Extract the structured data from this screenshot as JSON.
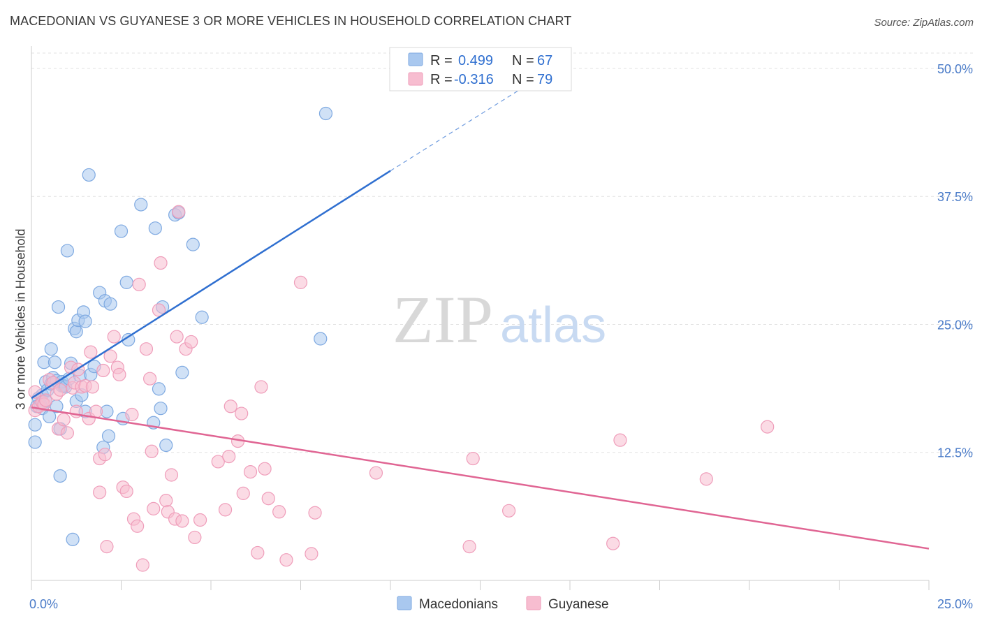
{
  "header": {
    "title": "MACEDONIAN VS GUYANESE 3 OR MORE VEHICLES IN HOUSEHOLD CORRELATION CHART",
    "source": "Source: ZipAtlas.com"
  },
  "watermark": {
    "zip": "ZIP",
    "atlas": "atlas"
  },
  "chart_data": {
    "type": "scatter",
    "title": "MACEDONIAN VS GUYANESE 3 OR MORE VEHICLES IN HOUSEHOLD CORRELATION CHART",
    "xlabel": "",
    "ylabel": "3 or more Vehicles in Household",
    "xlim": [
      0,
      25
    ],
    "ylim": [
      0,
      51.5
    ],
    "x_tick_labels": [
      {
        "value": 0,
        "label": "0.0%"
      },
      {
        "value": 25,
        "label": "25.0%"
      }
    ],
    "y_tick_labels": [
      {
        "value": 12.5,
        "label": "12.5%"
      },
      {
        "value": 25,
        "label": "25.0%"
      },
      {
        "value": 37.5,
        "label": "37.5%"
      },
      {
        "value": 50,
        "label": "50.0%"
      }
    ],
    "legend_position": "top-center",
    "series": [
      {
        "name": "Macedonians",
        "color": "#a9c8ef",
        "stroke": "#7ea9e1",
        "line_color": "#2f6fd0",
        "R": "0.499",
        "N": "67",
        "trend": {
          "x0": 0,
          "y0": 17.8,
          "x1": 10,
          "y1": 40.0,
          "dash_to_x": 14,
          "dash_to_y": 48.8
        },
        "points": [
          [
            0.1,
            13.5
          ],
          [
            0.1,
            15.2
          ],
          [
            0.15,
            17.0
          ],
          [
            0.2,
            17.8
          ],
          [
            0.25,
            17.2
          ],
          [
            0.3,
            18.1
          ],
          [
            0.3,
            16.8
          ],
          [
            0.35,
            21.3
          ],
          [
            0.4,
            19.4
          ],
          [
            0.4,
            17.5
          ],
          [
            0.45,
            18.6
          ],
          [
            0.5,
            16.0
          ],
          [
            0.55,
            19.2
          ],
          [
            0.55,
            22.6
          ],
          [
            0.6,
            19.8
          ],
          [
            0.65,
            21.3
          ],
          [
            0.7,
            17.0
          ],
          [
            0.7,
            19.5
          ],
          [
            0.75,
            26.7
          ],
          [
            0.8,
            14.8
          ],
          [
            0.8,
            10.2
          ],
          [
            0.85,
            19.0
          ],
          [
            0.85,
            19.4
          ],
          [
            0.9,
            19.0
          ],
          [
            0.95,
            18.9
          ],
          [
            1.0,
            32.2
          ],
          [
            1.05,
            19.7
          ],
          [
            1.1,
            21.2
          ],
          [
            1.15,
            4.0
          ],
          [
            1.2,
            24.6
          ],
          [
            1.25,
            17.5
          ],
          [
            1.25,
            24.3
          ],
          [
            1.3,
            25.4
          ],
          [
            1.35,
            20.0
          ],
          [
            1.4,
            18.1
          ],
          [
            1.45,
            26.2
          ],
          [
            1.5,
            16.5
          ],
          [
            1.5,
            25.3
          ],
          [
            1.6,
            39.6
          ],
          [
            1.65,
            20.1
          ],
          [
            1.75,
            20.9
          ],
          [
            1.9,
            28.1
          ],
          [
            2.0,
            13.0
          ],
          [
            2.05,
            27.3
          ],
          [
            2.1,
            16.5
          ],
          [
            2.15,
            14.1
          ],
          [
            2.2,
            27.0
          ],
          [
            2.5,
            34.1
          ],
          [
            2.55,
            15.8
          ],
          [
            2.65,
            29.1
          ],
          [
            2.7,
            23.5
          ],
          [
            3.05,
            36.7
          ],
          [
            3.4,
            15.4
          ],
          [
            3.45,
            34.4
          ],
          [
            3.55,
            18.7
          ],
          [
            3.6,
            16.8
          ],
          [
            3.65,
            26.7
          ],
          [
            3.75,
            13.2
          ],
          [
            4.0,
            35.7
          ],
          [
            4.1,
            35.9
          ],
          [
            4.2,
            20.3
          ],
          [
            4.5,
            32.8
          ],
          [
            4.75,
            25.7
          ],
          [
            8.05,
            23.6
          ],
          [
            8.2,
            45.6
          ]
        ]
      },
      {
        "name": "Guyanese",
        "color": "#f7bdd0",
        "stroke": "#ef9dba",
        "line_color": "#e06593",
        "R": "-0.316",
        "N": "79",
        "trend": {
          "x0": 0,
          "y0": 16.9,
          "x1": 25,
          "y1": 3.1
        },
        "points": [
          [
            0.1,
            18.4
          ],
          [
            0.1,
            16.6
          ],
          [
            0.2,
            17.0
          ],
          [
            0.3,
            17.4
          ],
          [
            0.35,
            17.2
          ],
          [
            0.4,
            17.6
          ],
          [
            0.5,
            19.6
          ],
          [
            0.6,
            19.3
          ],
          [
            0.7,
            18.2
          ],
          [
            0.75,
            14.8
          ],
          [
            0.8,
            18.6
          ],
          [
            0.9,
            15.7
          ],
          [
            1.0,
            14.4
          ],
          [
            1.1,
            20.8
          ],
          [
            1.15,
            18.8
          ],
          [
            1.2,
            19.3
          ],
          [
            1.25,
            16.5
          ],
          [
            1.3,
            20.6
          ],
          [
            1.4,
            18.9
          ],
          [
            1.5,
            19.0
          ],
          [
            1.6,
            15.8
          ],
          [
            1.65,
            22.3
          ],
          [
            1.7,
            18.9
          ],
          [
            1.8,
            16.5
          ],
          [
            1.9,
            11.9
          ],
          [
            1.9,
            8.6
          ],
          [
            2.0,
            20.5
          ],
          [
            2.05,
            12.3
          ],
          [
            2.1,
            3.3
          ],
          [
            2.2,
            21.9
          ],
          [
            2.3,
            23.8
          ],
          [
            2.4,
            20.8
          ],
          [
            2.45,
            20.1
          ],
          [
            2.55,
            9.1
          ],
          [
            2.65,
            8.7
          ],
          [
            2.8,
            16.2
          ],
          [
            2.85,
            6.0
          ],
          [
            2.95,
            5.3
          ],
          [
            3.0,
            28.9
          ],
          [
            3.1,
            1.5
          ],
          [
            3.2,
            22.6
          ],
          [
            3.3,
            19.7
          ],
          [
            3.35,
            12.6
          ],
          [
            3.4,
            7.0
          ],
          [
            3.55,
            26.4
          ],
          [
            3.6,
            31.0
          ],
          [
            3.75,
            7.8
          ],
          [
            3.8,
            6.7
          ],
          [
            3.9,
            10.3
          ],
          [
            4.0,
            6.0
          ],
          [
            4.05,
            23.8
          ],
          [
            4.1,
            36.0
          ],
          [
            4.2,
            5.8
          ],
          [
            4.3,
            22.6
          ],
          [
            4.45,
            23.3
          ],
          [
            4.55,
            4.2
          ],
          [
            4.7,
            5.9
          ],
          [
            5.2,
            11.6
          ],
          [
            5.4,
            6.9
          ],
          [
            5.5,
            12.1
          ],
          [
            5.55,
            17.0
          ],
          [
            5.75,
            13.6
          ],
          [
            5.85,
            16.3
          ],
          [
            5.9,
            8.5
          ],
          [
            6.1,
            10.6
          ],
          [
            6.3,
            2.7
          ],
          [
            6.4,
            18.9
          ],
          [
            6.5,
            10.9
          ],
          [
            6.6,
            8.0
          ],
          [
            6.9,
            6.7
          ],
          [
            7.1,
            2.0
          ],
          [
            7.5,
            29.1
          ],
          [
            7.8,
            2.6
          ],
          [
            7.9,
            6.6
          ],
          [
            9.6,
            10.5
          ],
          [
            12.2,
            3.3
          ],
          [
            12.3,
            11.9
          ],
          [
            13.3,
            6.8
          ],
          [
            16.2,
            3.6
          ],
          [
            16.4,
            13.7
          ],
          [
            18.8,
            9.9
          ],
          [
            20.5,
            15.0
          ]
        ]
      }
    ]
  },
  "legend": {
    "r_label": "R =",
    "n_label": "N =",
    "macedonians": {
      "r": "0.499",
      "n": "67"
    },
    "guyanese": {
      "r": "-0.316",
      "n": "79"
    }
  },
  "bottom_legend": {
    "macedonians": "Macedonians",
    "guyanese": "Guyanese"
  }
}
